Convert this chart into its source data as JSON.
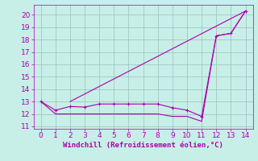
{
  "line1_x": [
    0,
    1,
    2,
    3,
    4,
    5,
    6,
    7,
    8,
    9,
    10,
    11,
    12,
    13,
    14
  ],
  "line1_y": [
    13.0,
    12.3,
    12.6,
    12.55,
    12.8,
    12.8,
    12.8,
    12.8,
    12.8,
    12.5,
    12.3,
    11.8,
    18.3,
    18.5,
    20.3
  ],
  "line2_x": [
    0,
    1,
    2,
    3,
    4,
    5,
    6,
    7,
    8,
    9,
    10,
    11,
    12,
    13,
    14
  ],
  "line2_y": [
    13.0,
    12.0,
    12.0,
    12.0,
    12.0,
    12.0,
    12.0,
    12.0,
    12.0,
    11.8,
    11.8,
    11.4,
    18.3,
    18.5,
    20.3
  ],
  "line3_x": [
    2,
    14
  ],
  "line3_y": [
    13.0,
    20.3
  ],
  "line_color": "#aa00aa",
  "background_color": "#c8eee8",
  "grid_color": "#a0c8c0",
  "xlabel": "Windchill (Refroidissement éolien,°C)",
  "xlim": [
    -0.5,
    14.5
  ],
  "ylim": [
    10.8,
    20.8
  ],
  "xticks": [
    0,
    1,
    2,
    3,
    4,
    5,
    6,
    7,
    8,
    9,
    10,
    11,
    12,
    13,
    14
  ],
  "yticks": [
    11,
    12,
    13,
    14,
    15,
    16,
    17,
    18,
    19,
    20
  ],
  "tick_color": "#aa00aa",
  "label_color": "#aa00aa",
  "font_size": 6.5
}
